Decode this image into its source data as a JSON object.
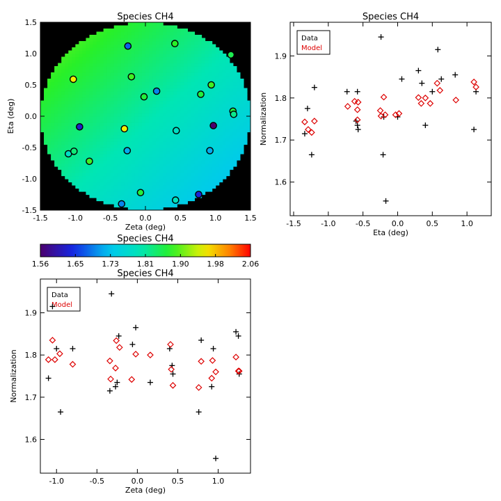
{
  "colors": {
    "data_marker": "#000000",
    "model_marker": "#dd0000",
    "plot_background": "#000000",
    "frame": "#000000"
  },
  "chart_data": [
    {
      "id": "map",
      "type": "scatter",
      "title": "Species CH4",
      "xlabel": "Zeta (deg)",
      "ylabel": "Eta (deg)",
      "xlim": [
        -1.5,
        1.5
      ],
      "ylim": [
        -1.5,
        1.5
      ],
      "xticks": [
        -1.5,
        -1.0,
        -0.5,
        0.0,
        0.5,
        1.0,
        1.5
      ],
      "yticks": [
        -1.5,
        -1.0,
        -0.5,
        0.0,
        0.5,
        1.0,
        1.5
      ],
      "tick_labels": [
        "-1.5",
        "-1.0",
        "-0.5",
        "0.0",
        "0.5",
        "1.0",
        "1.5"
      ],
      "background": "model field shown as a filled circle of radius 1.5 deg, colour graded from green (top-left) to cyan/blue (bottom-right)",
      "field_model": {
        "base": 1.805,
        "dzeta": -0.035,
        "deta": 0.035
      },
      "points": [
        {
          "x": -0.25,
          "y": 1.12,
          "v": 1.67
        },
        {
          "x": 0.42,
          "y": 1.16,
          "v": 1.87
        },
        {
          "x": 1.22,
          "y": 0.98,
          "v": 1.85
        },
        {
          "x": -1.03,
          "y": 0.59,
          "v": 1.95
        },
        {
          "x": -0.2,
          "y": 0.63,
          "v": 1.88
        },
        {
          "x": 0.16,
          "y": 0.4,
          "v": 1.69
        },
        {
          "x": -0.02,
          "y": 0.31,
          "v": 1.86
        },
        {
          "x": 0.79,
          "y": 0.35,
          "v": 1.86
        },
        {
          "x": 0.94,
          "y": 0.5,
          "v": 1.88
        },
        {
          "x": 1.25,
          "y": 0.08,
          "v": 1.86
        },
        {
          "x": 1.26,
          "y": 0.03,
          "v": 1.82
        },
        {
          "x": -0.94,
          "y": -0.17,
          "v": 1.62
        },
        {
          "x": -0.3,
          "y": -0.2,
          "v": 1.95
        },
        {
          "x": -0.26,
          "y": -0.55,
          "v": 1.71
        },
        {
          "x": 0.44,
          "y": -0.23,
          "v": 1.78
        },
        {
          "x": 0.97,
          "y": -0.15,
          "v": 1.56
        },
        {
          "x": 0.92,
          "y": -0.55,
          "v": 1.71
        },
        {
          "x": -1.1,
          "y": -0.6,
          "v": 1.78
        },
        {
          "x": -1.02,
          "y": -0.56,
          "v": 1.83
        },
        {
          "x": -0.8,
          "y": -0.72,
          "v": 1.88
        },
        {
          "x": -0.07,
          "y": -1.22,
          "v": 1.86
        },
        {
          "x": 0.43,
          "y": -1.34,
          "v": 1.79
        },
        {
          "x": 0.76,
          "y": -1.25,
          "v": 1.63
        },
        {
          "x": -0.34,
          "y": -1.4,
          "v": 1.69
        }
      ]
    },
    {
      "id": "colorbar",
      "type": "heatmap",
      "title": "Species CH4",
      "range": [
        1.56,
        2.06
      ],
      "tick_labels": [
        "1.56",
        "1.65",
        "1.73",
        "1.81",
        "1.90",
        "1.98",
        "2.06"
      ],
      "colormap": "rainbow (violet-blue-cyan-green-yellow-red)"
    },
    {
      "id": "eta_plot",
      "type": "scatter",
      "title": "Species CH4",
      "xlabel": "Eta (deg)",
      "ylabel": "Normalization",
      "xlim": [
        -1.55,
        1.35
      ],
      "ylim": [
        1.52,
        1.98
      ],
      "xticks": [
        -1.5,
        -1.0,
        -0.5,
        0.0,
        0.5,
        1.0
      ],
      "xtick_labels": [
        "-1.5",
        "-1.0",
        "-0.5",
        "0.0",
        "0.5",
        "1.0"
      ],
      "yticks": [
        1.6,
        1.7,
        1.8,
        1.9
      ],
      "ytick_labels": [
        "1.6",
        "1.7",
        "1.8",
        "1.9"
      ],
      "legend": {
        "position": "top-left",
        "entries": [
          "Data",
          "Model"
        ]
      },
      "series": [
        {
          "name": "Data",
          "marker": "plus",
          "x": [
            -1.34,
            -1.3,
            -1.24,
            -1.2,
            -0.73,
            -0.6,
            -0.58,
            -0.58,
            -0.57,
            -0.24,
            -0.21,
            -0.2,
            -0.17,
            0.0,
            0.06,
            0.3,
            0.35,
            0.4,
            0.5,
            0.58,
            0.63,
            0.83,
            1.1,
            1.13
          ],
          "y": [
            1.715,
            1.775,
            1.665,
            1.825,
            1.815,
            1.745,
            1.735,
            1.815,
            1.725,
            1.945,
            1.665,
            1.755,
            1.555,
            1.755,
            1.845,
            1.865,
            1.835,
            1.735,
            1.815,
            1.915,
            1.845,
            1.855,
            1.725,
            1.815
          ]
        },
        {
          "name": "Model",
          "marker": "diamond",
          "x": [
            -1.34,
            -1.29,
            -1.24,
            -1.2,
            -0.72,
            -0.62,
            -0.58,
            -0.58,
            -0.57,
            -0.25,
            -0.24,
            -0.2,
            -0.18,
            -0.03,
            0.02,
            0.3,
            0.34,
            0.4,
            0.47,
            0.57,
            0.61,
            0.84,
            1.1,
            1.13
          ],
          "y": [
            1.743,
            1.725,
            1.718,
            1.745,
            1.78,
            1.792,
            1.772,
            1.748,
            1.79,
            1.77,
            1.757,
            1.802,
            1.76,
            1.76,
            1.763,
            1.801,
            1.787,
            1.8,
            1.787,
            1.835,
            1.818,
            1.795,
            1.838,
            1.826
          ]
        }
      ]
    },
    {
      "id": "zeta_plot",
      "type": "scatter",
      "title": "Species CH4",
      "xlabel": "Zeta (deg)",
      "ylabel": "Normalization",
      "xlim": [
        -1.2,
        1.4
      ],
      "ylim": [
        1.52,
        1.98
      ],
      "xticks": [
        -1.0,
        -0.5,
        0.0,
        0.5,
        1.0
      ],
      "xtick_labels": [
        "-1.0",
        "-0.5",
        "0.0",
        "0.5",
        "1.0"
      ],
      "yticks": [
        1.6,
        1.7,
        1.8,
        1.9
      ],
      "ytick_labels": [
        "1.6",
        "1.7",
        "1.8",
        "1.9"
      ],
      "legend": {
        "position": "top-left",
        "entries": [
          "Data",
          "Model"
        ]
      },
      "series": [
        {
          "name": "Data",
          "marker": "plus",
          "x": [
            -1.1,
            -1.05,
            -1.0,
            -0.95,
            -0.8,
            -0.34,
            -0.32,
            -0.27,
            -0.25,
            -0.23,
            -0.06,
            -0.02,
            0.16,
            0.4,
            0.43,
            0.44,
            0.76,
            0.79,
            0.92,
            0.94,
            0.97,
            1.22,
            1.25,
            1.26
          ],
          "y": [
            1.745,
            1.915,
            1.815,
            1.665,
            1.815,
            1.715,
            1.945,
            1.725,
            1.735,
            1.845,
            1.825,
            1.865,
            1.735,
            1.815,
            1.775,
            1.755,
            1.665,
            1.835,
            1.725,
            1.815,
            1.555,
            1.855,
            1.845,
            1.755
          ]
        },
        {
          "name": "Model",
          "marker": "diamond",
          "x": [
            -1.1,
            -1.05,
            -1.02,
            -0.96,
            -0.8,
            -0.34,
            -0.33,
            -0.27,
            -0.26,
            -0.22,
            -0.07,
            -0.02,
            0.16,
            0.41,
            0.42,
            0.44,
            0.76,
            0.79,
            0.92,
            0.93,
            0.97,
            1.22,
            1.25,
            1.26
          ],
          "y": [
            1.789,
            1.835,
            1.789,
            1.803,
            1.778,
            1.786,
            1.743,
            1.769,
            1.834,
            1.818,
            1.742,
            1.802,
            1.8,
            1.825,
            1.766,
            1.728,
            1.723,
            1.785,
            1.745,
            1.787,
            1.76,
            1.795,
            1.762,
            1.762
          ]
        }
      ]
    }
  ]
}
